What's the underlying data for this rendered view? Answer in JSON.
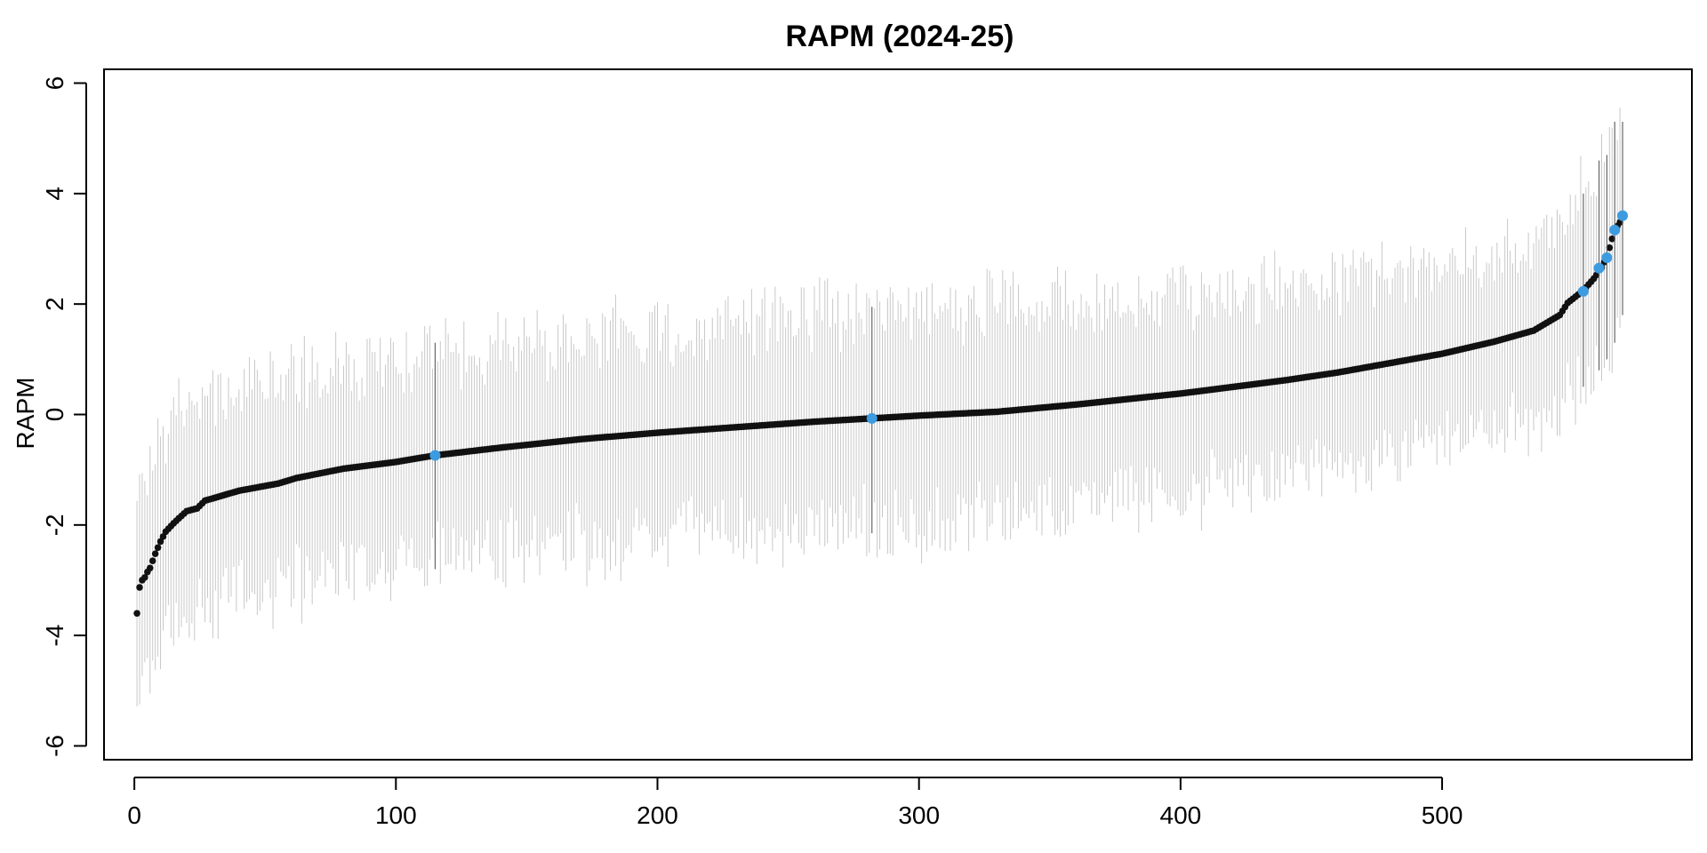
{
  "chart_data": {
    "type": "scatter",
    "title": "RAPM (2024-25)",
    "xlabel": "",
    "ylabel": "RAPM",
    "xlim": [
      -11.6,
      595.5
    ],
    "ylim": [
      -6.25,
      6.25
    ],
    "x_ticks": [
      0,
      100,
      200,
      300,
      400,
      500
    ],
    "y_ticks": [
      -6,
      -4,
      -2,
      0,
      2,
      4,
      6
    ],
    "grid": false,
    "legend": "none",
    "n_points": 569,
    "points_style": {
      "color": "#111111",
      "highlight_color": "#3d9be0",
      "errorbar_color": "#c8c8c8",
      "highlight_errorbar_color": "#666666"
    },
    "rank_anchors": [
      [
        1,
        -3.6
      ],
      [
        2,
        -3.13
      ],
      [
        3,
        -3.0
      ],
      [
        4,
        -2.95
      ],
      [
        5,
        -2.85
      ],
      [
        6,
        -2.78
      ],
      [
        8,
        -2.52
      ],
      [
        10,
        -2.3
      ],
      [
        12,
        -2.12
      ],
      [
        15,
        -1.97
      ],
      [
        17,
        -1.88
      ],
      [
        20,
        -1.75
      ],
      [
        24,
        -1.7
      ],
      [
        27,
        -1.56
      ],
      [
        40,
        -1.38
      ],
      [
        55,
        -1.25
      ],
      [
        62,
        -1.15
      ],
      [
        80,
        -0.98
      ],
      [
        100,
        -0.86
      ],
      [
        115,
        -0.74
      ],
      [
        140,
        -0.6
      ],
      [
        170,
        -0.45
      ],
      [
        200,
        -0.33
      ],
      [
        230,
        -0.23
      ],
      [
        260,
        -0.13
      ],
      [
        282,
        -0.07
      ],
      [
        300,
        -0.02
      ],
      [
        330,
        0.05
      ],
      [
        360,
        0.18
      ],
      [
        380,
        0.28
      ],
      [
        400,
        0.38
      ],
      [
        420,
        0.5
      ],
      [
        440,
        0.62
      ],
      [
        460,
        0.76
      ],
      [
        480,
        0.93
      ],
      [
        500,
        1.1
      ],
      [
        520,
        1.32
      ],
      [
        535,
        1.52
      ],
      [
        545,
        1.8
      ],
      [
        548,
        2.02
      ],
      [
        552,
        2.17
      ],
      [
        555,
        2.3
      ],
      [
        558,
        2.46
      ],
      [
        561,
        2.66
      ],
      [
        563,
        2.86
      ],
      [
        565,
        3.18
      ],
      [
        566,
        3.34
      ],
      [
        568,
        3.48
      ],
      [
        569,
        3.6
      ]
    ],
    "ci_half_width_anchors": [
      [
        1,
        1.75
      ],
      [
        20,
        1.9
      ],
      [
        80,
        1.85
      ],
      [
        200,
        1.9
      ],
      [
        350,
        1.9
      ],
      [
        450,
        1.75
      ],
      [
        500,
        1.5
      ],
      [
        540,
        1.6
      ],
      [
        555,
        1.75
      ],
      [
        569,
        1.75
      ]
    ],
    "highlighted_points": [
      {
        "x": 115,
        "y": -0.74,
        "lower": -2.8,
        "upper": 1.3
      },
      {
        "x": 282,
        "y": -0.07,
        "lower": -2.15,
        "upper": 1.95
      },
      {
        "x": 554,
        "y": 2.23,
        "lower": 0.5,
        "upper": 4.0
      },
      {
        "x": 560,
        "y": 2.65,
        "lower": 0.8,
        "upper": 4.6
      },
      {
        "x": 563,
        "y": 2.84,
        "lower": 1.0,
        "upper": 4.7
      },
      {
        "x": 566,
        "y": 3.34,
        "lower": 1.3,
        "upper": 5.3
      },
      {
        "x": 569,
        "y": 3.6,
        "lower": 1.8,
        "upper": 5.3
      }
    ]
  }
}
